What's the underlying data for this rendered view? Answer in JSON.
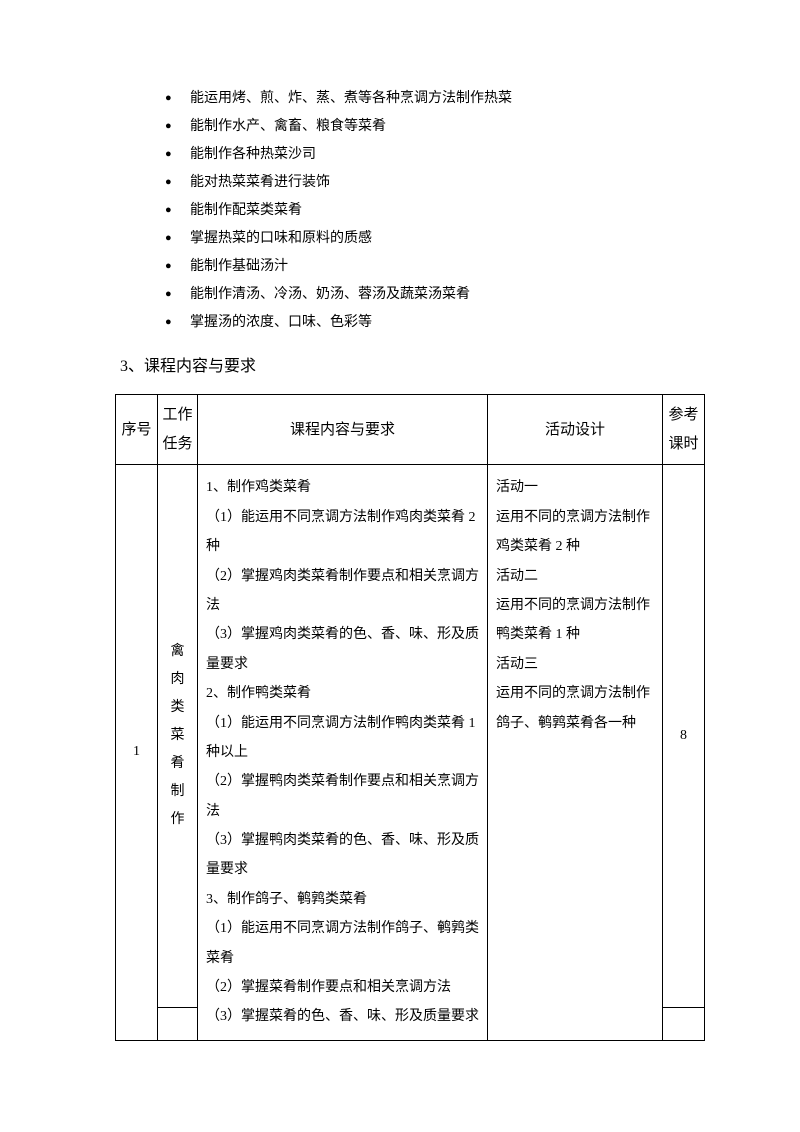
{
  "bullets": [
    "能运用烤、煎、炸、蒸、煮等各种烹调方法制作热菜",
    "能制作水产、禽畜、粮食等菜肴",
    "能制作各种热菜沙司",
    "能对热菜菜肴进行装饰",
    "能制作配菜类菜肴",
    "掌握热菜的口味和原料的质感",
    "能制作基础汤汁",
    "能制作清汤、冷汤、奶汤、蓉汤及蔬菜汤菜肴",
    "掌握汤的浓度、口味、色彩等"
  ],
  "section_heading": "3、课程内容与要求",
  "table": {
    "headers": {
      "seq": "序号",
      "task_l1": "工作",
      "task_l2": "任务",
      "content": "课程内容与要求",
      "activity": "活动设计",
      "hours_l1": "参考",
      "hours_l2": "课时"
    },
    "row1": {
      "seq": "1",
      "task": [
        "禽",
        "肉",
        "类",
        "菜",
        "肴",
        "制",
        "作"
      ],
      "content": "1、制作鸡类菜肴\n（1）能运用不同烹调方法制作鸡肉类菜肴 2 种\n（2）掌握鸡肉类菜肴制作要点和相关烹调方法\n（3）掌握鸡肉类菜肴的色、香、味、形及质量要求\n2、制作鸭类菜肴\n（1）能运用不同烹调方法制作鸭肉类菜肴 1 种以上\n（2）掌握鸭肉类菜肴制作要点和相关烹调方法\n（3）掌握鸭肉类菜肴的色、香、味、形及质量要求\n3、制作鸽子、鹌鹑类菜肴\n（1）能运用不同烹调方法制作鸽子、鹌鹑类菜肴\n（2）掌握菜肴制作要点和相关烹调方法\n（3）掌握菜肴的色、香、味、形及质量要求",
      "activity": "活动一\n运用不同的烹调方法制作鸡类菜肴 2 种\n活动二\n运用不同的烹调方法制作鸭类菜肴 1 种\n活动三\n运用不同的烹调方法制作鸽子、鹌鹑菜肴各一种",
      "hours": "8"
    }
  }
}
